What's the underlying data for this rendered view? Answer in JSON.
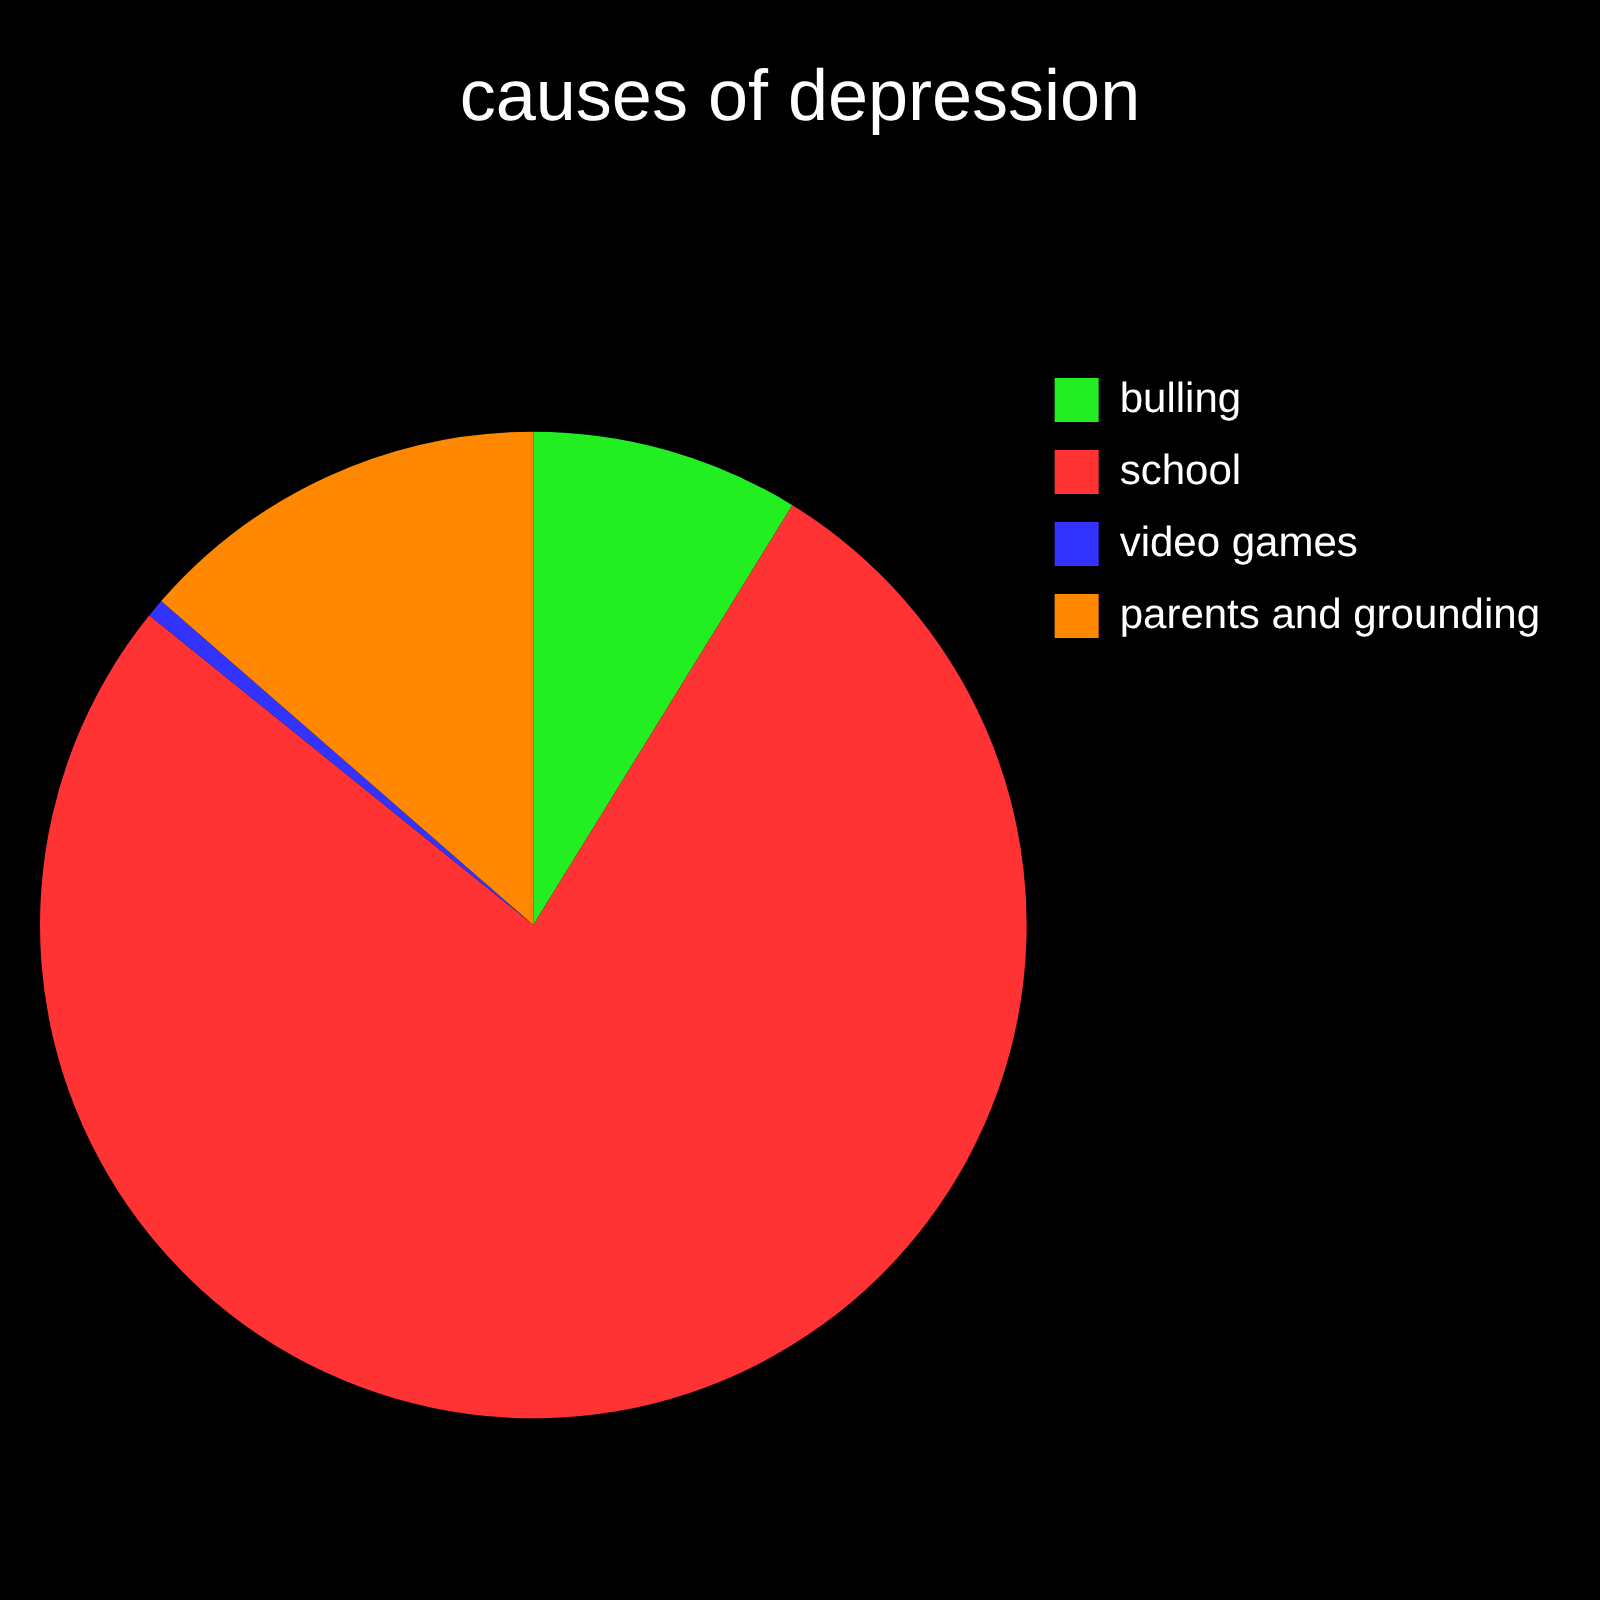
{
  "chart_data": {
    "type": "pie",
    "title": "causes of depression",
    "categories": [
      "bulling",
      "school",
      "video games",
      "parents and grounding"
    ],
    "values": [
      8.8,
      77,
      0.6,
      13.6
    ],
    "colors": [
      "#22ee22",
      "#ff3333",
      "#3333ff",
      "#ff8800"
    ],
    "legend": "right"
  }
}
